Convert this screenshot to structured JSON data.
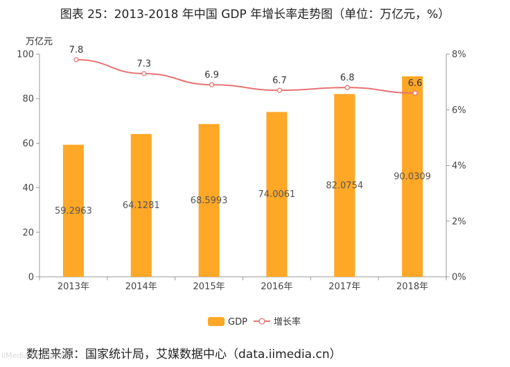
{
  "title": "图表 25：2013-2018 年中国 GDP 年增长率走势图（单位：万亿元，%）",
  "footer": "数据来源：国家统计局，艾媒数据中心（data.iimedia.cn）",
  "watermark": "iiMedia Research",
  "colors": {
    "bar": "#FFA726",
    "line": "#E57373",
    "axis": "#999999"
  },
  "chart_data": {
    "type": "bar",
    "categories": [
      "2013年",
      "2014年",
      "2015年",
      "2016年",
      "2017年",
      "2018年"
    ],
    "series": [
      {
        "name": "GDP",
        "type": "bar",
        "axis": "left",
        "values": [
          59.2963,
          64.1281,
          68.5993,
          74.0061,
          82.0754,
          90.0309
        ],
        "labels": [
          "59.2963",
          "64.1281",
          "68.5993",
          "74.0061",
          "82.0754",
          "90.0309"
        ]
      },
      {
        "name": "增长率",
        "type": "line",
        "axis": "right",
        "values": [
          7.8,
          7.3,
          6.9,
          6.7,
          6.8,
          6.6
        ],
        "labels": [
          "7.8",
          "7.3",
          "6.9",
          "6.7",
          "6.8",
          "6.6"
        ]
      }
    ],
    "y_left": {
      "label": "万亿元",
      "ylim": [
        0,
        100
      ],
      "ticks": [
        "0",
        "20",
        "40",
        "60",
        "80",
        "100"
      ]
    },
    "y_right": {
      "ylim": [
        0,
        8
      ],
      "ticks": [
        "0%",
        "2%",
        "4%",
        "6%",
        "8%"
      ]
    },
    "legend": {
      "position": "bottom-center",
      "items": [
        "GDP",
        "增长率"
      ]
    },
    "grid": false
  }
}
